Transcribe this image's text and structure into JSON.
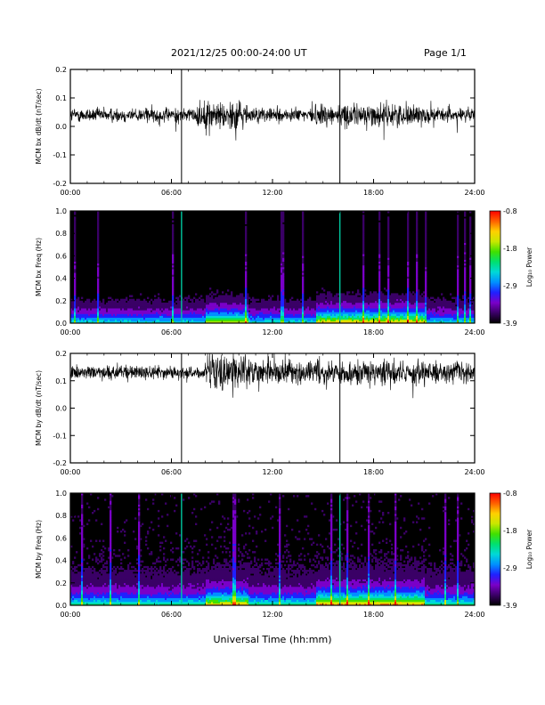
{
  "header": {
    "title": "2021/12/25  00:00-24:00 UT",
    "page": "Page 1/1"
  },
  "xaxis_label": "Universal Time (hh:mm)",
  "colorbar": {
    "label": "Log₁₀ Power",
    "ticks": [
      "-0.8",
      "-1.8",
      "-2.9",
      "-3.9"
    ],
    "colors": [
      "#000000",
      "#3a0066",
      "#7a00c8",
      "#2020ff",
      "#0090ff",
      "#00d8d8",
      "#00e070",
      "#40e000",
      "#c8e800",
      "#ffd000",
      "#ff6000",
      "#ff0000"
    ]
  },
  "chart_data": [
    {
      "type": "line",
      "ylabel": "MCM bx dB/dt (nT/sec)",
      "xlim": [
        0,
        24
      ],
      "ylim": [
        -0.2,
        0.2
      ],
      "xticks": [
        "00:00",
        "06:00",
        "12:00",
        "18:00",
        "24:00"
      ],
      "yticks": [
        "0.2",
        "0.1",
        "0.0",
        "-0.1",
        "-0.2"
      ],
      "baseline": 0.04,
      "spikes_at_hours": [
        6.6,
        16.0
      ],
      "series": [
        {
          "values_summary": "noise around 0.04 with bursts near 08:00-10:00 and 15:00-21:00"
        }
      ]
    },
    {
      "type": "heatmap",
      "ylabel": "MCM bx Freq (Hz)",
      "xlim": [
        0,
        24
      ],
      "ylim": [
        0.0,
        1.0
      ],
      "xticks": [
        "00:00",
        "06:00",
        "12:00",
        "18:00",
        "24:00"
      ],
      "yticks": [
        "1.0",
        "0.8",
        "0.6",
        "0.4",
        "0.2",
        "0.0"
      ],
      "zlim": [
        -3.9,
        -0.8
      ]
    },
    {
      "type": "line",
      "ylabel": "MCM by dB/dt (nT/sec)",
      "xlim": [
        0,
        24
      ],
      "ylim": [
        -0.2,
        0.2
      ],
      "xticks": [
        "00:00",
        "06:00",
        "12:00",
        "18:00",
        "24:00"
      ],
      "yticks": [
        "0.2",
        "0.1",
        "0.0",
        "-0.1",
        "-0.2"
      ],
      "baseline": 0.13,
      "spikes_at_hours": [
        6.6,
        16.0
      ],
      "series": [
        {
          "values_summary": "noise around 0.13 with dip near 09:00-10:00 to about -0.1"
        }
      ]
    },
    {
      "type": "heatmap",
      "ylabel": "MCM by Freq (Hz)",
      "xlim": [
        0,
        24
      ],
      "ylim": [
        0.0,
        1.0
      ],
      "xticks": [
        "00:00",
        "06:00",
        "12:00",
        "18:00",
        "24:00"
      ],
      "yticks": [
        "1.0",
        "0.8",
        "0.6",
        "0.4",
        "0.2",
        "0.0"
      ],
      "zlim": [
        -3.9,
        -0.8
      ]
    }
  ]
}
